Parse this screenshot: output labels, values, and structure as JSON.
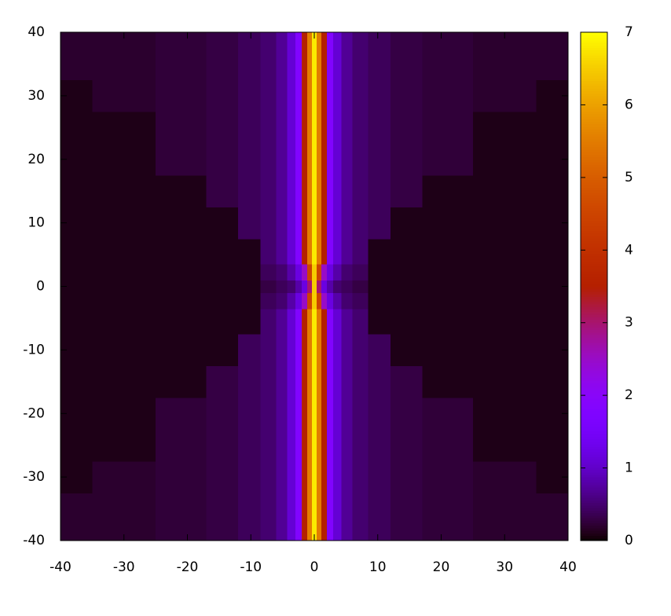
{
  "chart_data": {
    "type": "heatmap",
    "x": [
      -40,
      -30,
      -20,
      -14,
      -10,
      -7,
      -5,
      -3.5,
      -2.5,
      -1.5,
      -0.75,
      0,
      0.75,
      1.5,
      2.5,
      3.5,
      5,
      7,
      10,
      14,
      20,
      30,
      40
    ],
    "y": [
      -40,
      -35,
      -30,
      -25,
      -20,
      -15,
      -10,
      -5,
      -2,
      0,
      2,
      5,
      10,
      15,
      20,
      25,
      30,
      35,
      40
    ],
    "z": [
      [
        0.2,
        0.2,
        0.25,
        0.3,
        0.4,
        0.5,
        0.7,
        1.1,
        1.8,
        3.5,
        5.5,
        6.8,
        5.5,
        3.5,
        1.8,
        1.1,
        0.7,
        0.5,
        0.4,
        0.3,
        0.25,
        0.2,
        0.2
      ],
      [
        0.2,
        0.2,
        0.25,
        0.3,
        0.4,
        0.5,
        0.7,
        1.1,
        1.8,
        3.5,
        5.5,
        6.8,
        5.5,
        3.5,
        1.8,
        1.1,
        0.7,
        0.5,
        0.4,
        0.3,
        0.25,
        0.2,
        0.2
      ],
      [
        0.1,
        0.2,
        0.25,
        0.3,
        0.4,
        0.5,
        0.7,
        1.1,
        1.8,
        3.5,
        5.5,
        6.8,
        5.5,
        3.5,
        1.8,
        1.1,
        0.7,
        0.5,
        0.4,
        0.3,
        0.25,
        0.2,
        0.1
      ],
      [
        0.1,
        0.1,
        0.25,
        0.3,
        0.4,
        0.5,
        0.7,
        1.1,
        1.8,
        3.5,
        5.5,
        6.8,
        5.5,
        3.5,
        1.8,
        1.1,
        0.7,
        0.5,
        0.4,
        0.3,
        0.25,
        0.1,
        0.1
      ],
      [
        0.1,
        0.1,
        0.25,
        0.3,
        0.4,
        0.5,
        0.7,
        1.1,
        1.8,
        3.5,
        5.5,
        6.8,
        5.5,
        3.5,
        1.8,
        1.1,
        0.7,
        0.5,
        0.4,
        0.3,
        0.25,
        0.1,
        0.1
      ],
      [
        0.1,
        0.1,
        0.1,
        0.3,
        0.4,
        0.5,
        0.7,
        1.1,
        1.8,
        3.5,
        5.5,
        6.8,
        5.5,
        3.5,
        1.8,
        1.1,
        0.7,
        0.5,
        0.4,
        0.3,
        0.1,
        0.1,
        0.1
      ],
      [
        0.1,
        0.1,
        0.1,
        0.1,
        0.4,
        0.5,
        0.7,
        1.1,
        1.8,
        3.5,
        5.5,
        6.8,
        5.5,
        3.5,
        1.8,
        1.1,
        0.7,
        0.5,
        0.4,
        0.1,
        0.1,
        0.1,
        0.1
      ],
      [
        0.1,
        0.1,
        0.1,
        0.1,
        0.1,
        0.5,
        0.7,
        1.1,
        1.8,
        3.5,
        5.5,
        6.8,
        5.5,
        3.5,
        1.8,
        1.1,
        0.7,
        0.5,
        0.1,
        0.1,
        0.1,
        0.1,
        0.1
      ],
      [
        0.1,
        0.1,
        0.1,
        0.1,
        0.1,
        0.4,
        0.5,
        0.8,
        1.2,
        2.5,
        4.5,
        6.5,
        4.5,
        2.5,
        1.2,
        0.8,
        0.5,
        0.4,
        0.1,
        0.1,
        0.1,
        0.1,
        0.1
      ],
      [
        0.1,
        0.1,
        0.1,
        0.1,
        0.1,
        0.3,
        0.4,
        0.5,
        0.8,
        1.2,
        3,
        6.5,
        3,
        1.2,
        0.8,
        0.5,
        0.4,
        0.3,
        0.1,
        0.1,
        0.1,
        0.1,
        0.1
      ],
      [
        0.1,
        0.1,
        0.1,
        0.1,
        0.1,
        0.4,
        0.5,
        0.8,
        1.2,
        2.5,
        4.5,
        6.5,
        4.5,
        2.5,
        1.2,
        0.8,
        0.5,
        0.4,
        0.1,
        0.1,
        0.1,
        0.1,
        0.1
      ],
      [
        0.1,
        0.1,
        0.1,
        0.1,
        0.1,
        0.5,
        0.7,
        1.1,
        1.8,
        3.5,
        5.5,
        6.8,
        5.5,
        3.5,
        1.8,
        1.1,
        0.7,
        0.5,
        0.1,
        0.1,
        0.1,
        0.1,
        0.1
      ],
      [
        0.1,
        0.1,
        0.1,
        0.1,
        0.4,
        0.5,
        0.7,
        1.1,
        1.8,
        3.5,
        5.5,
        6.8,
        5.5,
        3.5,
        1.8,
        1.1,
        0.7,
        0.5,
        0.4,
        0.1,
        0.1,
        0.1,
        0.1
      ],
      [
        0.1,
        0.1,
        0.1,
        0.3,
        0.4,
        0.5,
        0.7,
        1.1,
        1.8,
        3.5,
        5.5,
        6.8,
        5.5,
        3.5,
        1.8,
        1.1,
        0.7,
        0.5,
        0.4,
        0.3,
        0.1,
        0.1,
        0.1
      ],
      [
        0.1,
        0.1,
        0.25,
        0.3,
        0.4,
        0.5,
        0.7,
        1.1,
        1.8,
        3.5,
        5.5,
        6.8,
        5.5,
        3.5,
        1.8,
        1.1,
        0.7,
        0.5,
        0.4,
        0.3,
        0.25,
        0.1,
        0.1
      ],
      [
        0.1,
        0.1,
        0.25,
        0.3,
        0.4,
        0.5,
        0.7,
        1.1,
        1.8,
        3.5,
        5.5,
        6.8,
        5.5,
        3.5,
        1.8,
        1.1,
        0.7,
        0.5,
        0.4,
        0.3,
        0.25,
        0.1,
        0.1
      ],
      [
        0.1,
        0.2,
        0.25,
        0.3,
        0.4,
        0.5,
        0.7,
        1.1,
        1.8,
        3.5,
        5.5,
        6.8,
        5.5,
        3.5,
        1.8,
        1.1,
        0.7,
        0.5,
        0.4,
        0.3,
        0.25,
        0.2,
        0.1
      ],
      [
        0.2,
        0.2,
        0.25,
        0.3,
        0.4,
        0.5,
        0.7,
        1.1,
        1.8,
        3.5,
        5.5,
        6.8,
        5.5,
        3.5,
        1.8,
        1.1,
        0.7,
        0.5,
        0.4,
        0.3,
        0.25,
        0.2,
        0.2
      ],
      [
        0.2,
        0.2,
        0.25,
        0.3,
        0.4,
        0.5,
        0.7,
        1.1,
        1.8,
        3.5,
        5.5,
        6.8,
        5.5,
        3.5,
        1.8,
        1.1,
        0.7,
        0.5,
        0.4,
        0.3,
        0.25,
        0.2,
        0.2
      ]
    ],
    "xlim": [
      -40,
      40
    ],
    "ylim": [
      -40,
      40
    ],
    "xticks": [
      -40,
      -30,
      -20,
      -10,
      0,
      10,
      20,
      30,
      40
    ],
    "yticks": [
      -40,
      -30,
      -20,
      -10,
      0,
      10,
      20,
      30,
      40
    ],
    "zlim": [
      0,
      7
    ],
    "zticks": [
      0,
      1,
      2,
      3,
      4,
      5,
      6,
      7
    ],
    "colormap": "gnuplot"
  }
}
